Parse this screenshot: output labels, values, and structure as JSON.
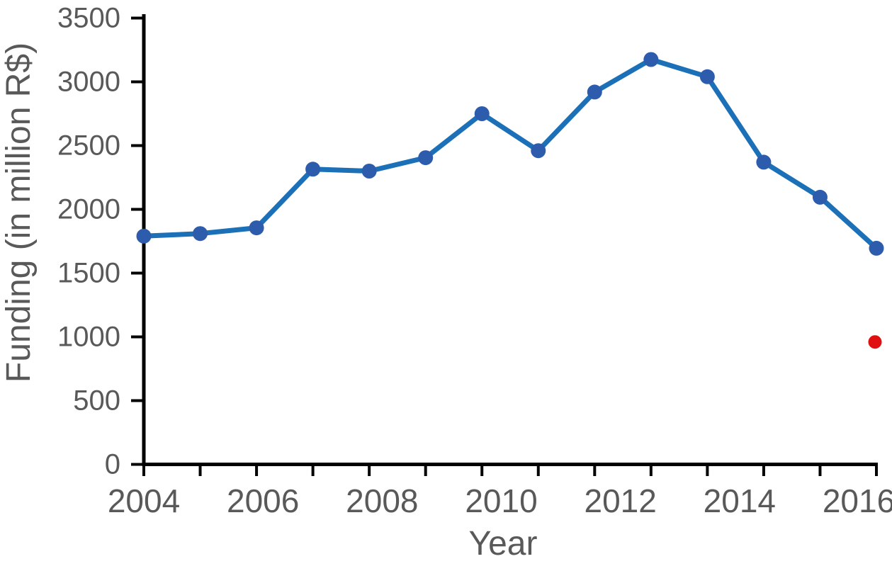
{
  "chart_data": {
    "type": "line",
    "title": "",
    "xlabel": "Year",
    "ylabel": "Funding (in million R$)",
    "x": [
      2004,
      2005,
      2006,
      2007,
      2008,
      2009,
      2010,
      2011,
      2012,
      2013,
      2014,
      2015,
      2016,
      2017
    ],
    "series": [
      {
        "name": "Funding",
        "color": "#1C70B8",
        "marker_color": "#2E5CAD",
        "values": [
          1790,
          1810,
          1855,
          2315,
          2300,
          2405,
          2750,
          2460,
          2920,
          3175,
          3040,
          2370,
          2095,
          1695
        ]
      }
    ],
    "outlier_point": {
      "x": 2017,
      "value": 960,
      "color": "#E01010"
    },
    "x_tick_labels": [
      "2004",
      "2006",
      "2008",
      "2010",
      "2012",
      "2014",
      "2016"
    ],
    "y_ticks": [
      0,
      500,
      1000,
      1500,
      2000,
      2500,
      3000,
      3500
    ],
    "y_tick_labels": [
      "0",
      "500",
      "1000",
      "1500",
      "2000",
      "2500",
      "3000",
      "3500"
    ],
    "ylim": [
      0,
      3500
    ],
    "grid": false,
    "legend": "none",
    "axis_color": "#000000",
    "text_color": "#595959"
  }
}
